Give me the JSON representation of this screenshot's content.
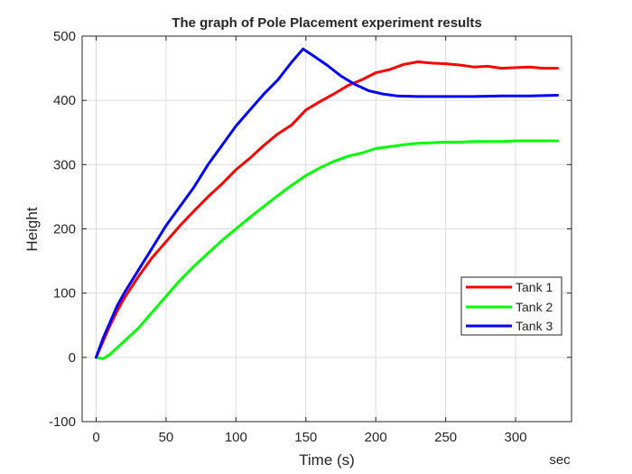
{
  "chart_data": {
    "type": "line",
    "title": "The graph of Pole Placement experiment results",
    "xlabel": "Time (s)",
    "ylabel": "Height",
    "x_unit_label": "sec",
    "xlim": [
      -10,
      340
    ],
    "ylim": [
      -100,
      500
    ],
    "xticks": [
      0,
      50,
      100,
      150,
      200,
      250,
      300
    ],
    "yticks": [
      -100,
      0,
      100,
      200,
      300,
      400,
      500
    ],
    "grid": true,
    "legend_position": "lower-right",
    "series": [
      {
        "name": "Tank 1",
        "color": "#ff0000",
        "x": [
          0,
          5,
          10,
          15,
          20,
          30,
          40,
          50,
          60,
          70,
          80,
          90,
          100,
          110,
          120,
          130,
          140,
          150,
          160,
          170,
          180,
          190,
          200,
          210,
          220,
          230,
          240,
          250,
          260,
          270,
          280,
          290,
          300,
          310,
          320,
          330
        ],
        "y": [
          0,
          25,
          50,
          72,
          92,
          125,
          155,
          180,
          205,
          228,
          250,
          270,
          292,
          310,
          330,
          348,
          362,
          385,
          398,
          410,
          423,
          432,
          443,
          448,
          456,
          460,
          458,
          457,
          455,
          452,
          453,
          450,
          451,
          452,
          450,
          450
        ]
      },
      {
        "name": "Tank 2",
        "color": "#00ff00",
        "x": [
          0,
          5,
          10,
          15,
          20,
          30,
          40,
          50,
          60,
          70,
          80,
          90,
          100,
          110,
          120,
          130,
          140,
          150,
          160,
          170,
          180,
          190,
          200,
          210,
          220,
          230,
          240,
          250,
          260,
          270,
          280,
          290,
          300,
          310,
          320,
          330
        ],
        "y": [
          0,
          -2,
          5,
          15,
          25,
          45,
          70,
          95,
          120,
          142,
          162,
          182,
          200,
          218,
          235,
          252,
          268,
          283,
          295,
          305,
          313,
          318,
          325,
          328,
          331,
          333,
          334,
          335,
          335,
          336,
          336,
          336,
          337,
          337,
          337,
          337
        ]
      },
      {
        "name": "Tank 3",
        "color": "#0000ff",
        "x": [
          0,
          5,
          10,
          15,
          20,
          30,
          40,
          50,
          60,
          70,
          80,
          90,
          100,
          110,
          120,
          130,
          140,
          148,
          155,
          165,
          175,
          185,
          195,
          205,
          215,
          230,
          250,
          270,
          290,
          310,
          330
        ],
        "y": [
          0,
          30,
          55,
          80,
          100,
          135,
          170,
          205,
          235,
          265,
          300,
          330,
          360,
          385,
          410,
          432,
          460,
          480,
          470,
          455,
          438,
          425,
          415,
          410,
          407,
          406,
          406,
          406,
          407,
          407,
          408
        ]
      }
    ]
  }
}
